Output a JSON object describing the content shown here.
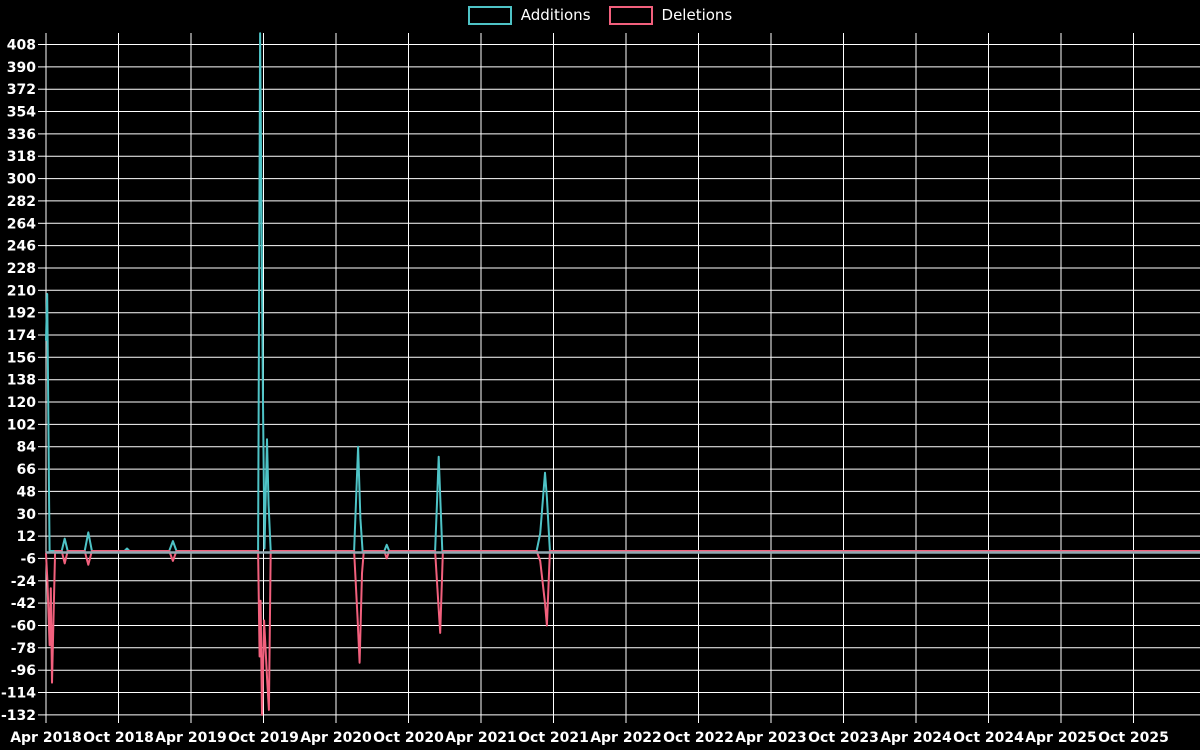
{
  "legend": {
    "items": [
      {
        "label": "Additions",
        "series_key": "additions"
      },
      {
        "label": "Deletions",
        "series_key": "deletions"
      }
    ]
  },
  "colors": {
    "additions": "#4EC3C6",
    "deletions": "#F2607D",
    "zero_line": "#90A9B2",
    "grid": "#FFFFFF",
    "text": "#FFFFFF",
    "background": "#000000"
  },
  "chart_data": {
    "type": "line",
    "title": "",
    "xlabel": "",
    "ylabel": "",
    "grid": true,
    "legend_position": "top-center",
    "ylim": [
      -132,
      417
    ],
    "y_tick_step": 18,
    "y_ticks": [
      408,
      390,
      372,
      354,
      336,
      318,
      300,
      282,
      264,
      246,
      228,
      210,
      192,
      174,
      156,
      138,
      120,
      102,
      84,
      66,
      48,
      30,
      12,
      -6,
      -24,
      -42,
      -60,
      -78,
      -96,
      -114,
      -132
    ],
    "x_unit": "months since Apr 2018",
    "x_tick_spacing_months": 6,
    "x_tick_labels": [
      "Apr 2018",
      "Oct 2018",
      "Apr 2019",
      "Oct 2019",
      "Apr 2020",
      "Oct 2020",
      "Apr 2021",
      "Oct 2021",
      "Apr 2022",
      "Oct 2022",
      "Apr 2023",
      "Oct 2023",
      "Apr 2024",
      "Oct 2024",
      "Apr 2025",
      "Oct 2025"
    ],
    "series": [
      {
        "name": "Additions",
        "color_key": "additions",
        "points": [
          [
            0,
            170
          ],
          [
            0.1,
            207
          ],
          [
            0.2,
            105
          ],
          [
            0.25,
            47
          ],
          [
            0.3,
            0
          ],
          [
            1.3,
            0
          ],
          [
            1.55,
            10
          ],
          [
            1.8,
            0
          ],
          [
            3.2,
            0
          ],
          [
            3.5,
            15
          ],
          [
            3.8,
            0
          ],
          [
            6.5,
            0
          ],
          [
            6.7,
            2
          ],
          [
            6.9,
            0
          ],
          [
            10.2,
            0
          ],
          [
            10.5,
            8
          ],
          [
            10.8,
            0
          ],
          [
            17.55,
            0
          ],
          [
            17.72,
            417
          ],
          [
            17.95,
            127
          ],
          [
            18.08,
            2
          ],
          [
            18.29,
            90
          ],
          [
            18.42,
            37
          ],
          [
            18.6,
            0
          ],
          [
            25.5,
            0
          ],
          [
            25.83,
            84
          ],
          [
            26.02,
            26
          ],
          [
            26.2,
            0
          ],
          [
            28.0,
            0
          ],
          [
            28.2,
            5
          ],
          [
            28.4,
            0
          ],
          [
            32.2,
            0
          ],
          [
            32.35,
            37
          ],
          [
            32.5,
            76
          ],
          [
            32.8,
            0
          ],
          [
            40.6,
            0
          ],
          [
            40.9,
            14
          ],
          [
            41.3,
            63
          ],
          [
            41.45,
            43
          ],
          [
            41.7,
            0
          ],
          [
            95.5,
            0
          ]
        ]
      },
      {
        "name": "Deletions",
        "color_key": "deletions",
        "points": [
          [
            0,
            -2
          ],
          [
            0.12,
            -24
          ],
          [
            0.3,
            -76
          ],
          [
            0.4,
            -30
          ],
          [
            0.5,
            -106
          ],
          [
            0.75,
            0
          ],
          [
            1.3,
            0
          ],
          [
            1.55,
            -10
          ],
          [
            1.8,
            0
          ],
          [
            3.2,
            0
          ],
          [
            3.5,
            -11
          ],
          [
            3.8,
            0
          ],
          [
            10.2,
            0
          ],
          [
            10.5,
            -8
          ],
          [
            10.8,
            0
          ],
          [
            17.55,
            0
          ],
          [
            17.68,
            -85
          ],
          [
            17.76,
            -40
          ],
          [
            17.88,
            -132
          ],
          [
            18.05,
            -56
          ],
          [
            18.3,
            -103
          ],
          [
            18.45,
            -128
          ],
          [
            18.6,
            0
          ],
          [
            25.5,
            0
          ],
          [
            25.78,
            -53
          ],
          [
            25.95,
            -90
          ],
          [
            26.15,
            -18
          ],
          [
            26.3,
            0
          ],
          [
            28.0,
            0
          ],
          [
            28.2,
            -6
          ],
          [
            28.4,
            0
          ],
          [
            32.2,
            0
          ],
          [
            32.5,
            -47
          ],
          [
            32.62,
            -66
          ],
          [
            32.85,
            0
          ],
          [
            40.6,
            0
          ],
          [
            40.9,
            -8
          ],
          [
            41.3,
            -42
          ],
          [
            41.45,
            -60
          ],
          [
            41.7,
            0
          ],
          [
            95.5,
            0
          ]
        ]
      }
    ]
  }
}
